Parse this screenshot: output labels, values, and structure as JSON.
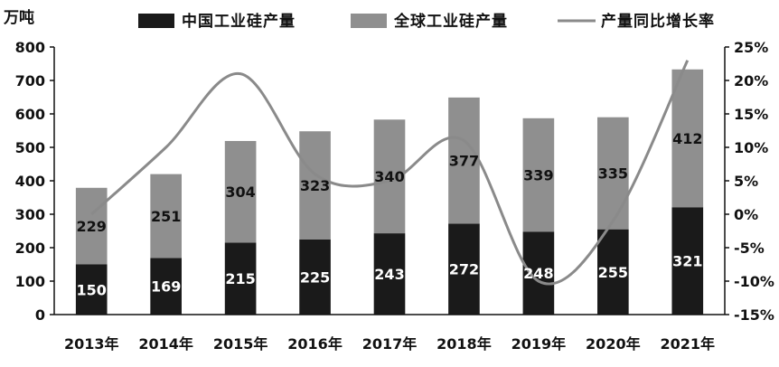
{
  "chart_data": {
    "type": "bar",
    "subtype": "stacked bar with line on secondary axis",
    "title": "",
    "ylabel": "万吨",
    "y2label": "",
    "categories": [
      "2013年",
      "2014年",
      "2015年",
      "2016年",
      "2017年",
      "2018年",
      "2019年",
      "2020年",
      "2021年"
    ],
    "series": [
      {
        "name": "中国工业硅产量",
        "type": "bar",
        "stack": "total",
        "axis": "left",
        "color": "#1a1a1a",
        "values": [
          150,
          169,
          215,
          225,
          243,
          272,
          248,
          255,
          321
        ]
      },
      {
        "name": "全球工业硅产量",
        "type": "bar",
        "stack": "total",
        "axis": "left",
        "color": "#8f8f8f",
        "values": [
          229,
          251,
          304,
          323,
          340,
          377,
          339,
          335,
          412
        ]
      },
      {
        "name": "产量同比增长率",
        "type": "line",
        "axis": "right",
        "color": "#8a8a8a",
        "values": [
          0,
          10,
          21,
          6,
          5,
          11,
          -10,
          -1,
          23
        ]
      }
    ],
    "ylim": [
      0,
      800
    ],
    "yticks": [
      "0",
      "100",
      "200",
      "300",
      "400",
      "500",
      "600",
      "700",
      "800"
    ],
    "y2lim": [
      -15,
      25
    ],
    "y2ticks": [
      "-15%",
      "-10%",
      "-5%",
      "0%",
      "5%",
      "10%",
      "15%",
      "20%",
      "25%"
    ],
    "grid": false,
    "legend": "top",
    "data_labels": true
  }
}
